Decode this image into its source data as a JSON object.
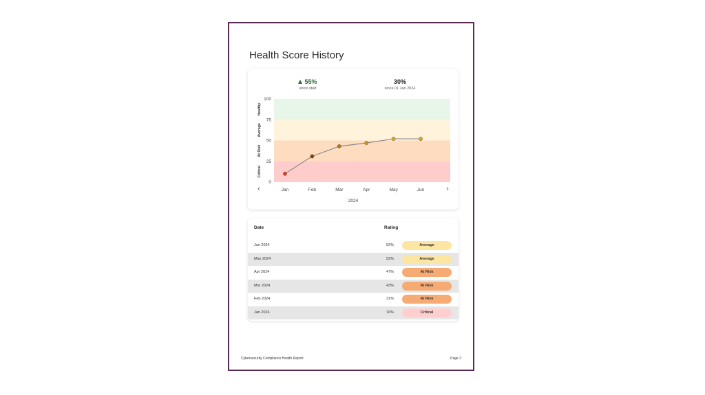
{
  "page": {
    "title": "Health Score History",
    "footer_left": "Cybersecurity Compliance Health Report",
    "footer_right": "Page 2"
  },
  "stats": [
    {
      "value": "55%",
      "caption": "since start",
      "trend": "up"
    },
    {
      "value": "30%",
      "caption": "since 01 Jan 2024",
      "trend": "none"
    }
  ],
  "nav": {
    "prev_icon": "chevron-left-icon",
    "next_icon": "chevron-right-icon",
    "prev_glyph": "‹",
    "next_glyph": "›"
  },
  "chart_data": {
    "type": "line",
    "categories": [
      "Jan",
      "Feb",
      "Mar",
      "Apr",
      "May",
      "Jun"
    ],
    "values": [
      10,
      31,
      43,
      47,
      52,
      52
    ],
    "point_colors": [
      "#e03a2e",
      "#8a3a12",
      "#b5761a",
      "#c89a1a",
      "#d4ad2a",
      "#d4ad2a"
    ],
    "y_ticks": [
      "0",
      "25",
      "50",
      "75",
      "100"
    ],
    "ylim": [
      0,
      100
    ],
    "xlabel": "2024",
    "grid": false,
    "bands": [
      {
        "label": "Critical",
        "from": 0,
        "to": 25,
        "color": "#ffcccc"
      },
      {
        "label": "At Risk",
        "from": 25,
        "to": 50,
        "color": "#fddcc0"
      },
      {
        "label": "Average",
        "from": 50,
        "to": 75,
        "color": "#fff3dc"
      },
      {
        "label": "Healthy",
        "from": 75,
        "to": 100,
        "color": "#e8f6ea"
      }
    ],
    "line_color": "#8a8a8a"
  },
  "table": {
    "headers": {
      "date": "Date",
      "rating": "Rating"
    },
    "rows": [
      {
        "date": "Jun 2024",
        "pct": "52%",
        "rating": "Average",
        "color": "#fde6a2"
      },
      {
        "date": "May 2024",
        "pct": "52%",
        "rating": "Average",
        "color": "#fde6a2"
      },
      {
        "date": "Apr 2024",
        "pct": "47%",
        "rating": "At Risk",
        "color": "#f7ab74"
      },
      {
        "date": "Mar 2024",
        "pct": "43%",
        "rating": "At Risk",
        "color": "#f7ab74"
      },
      {
        "date": "Feb 2024",
        "pct": "31%",
        "rating": "At Risk",
        "color": "#f7ab74"
      },
      {
        "date": "Jan 2024",
        "pct": "10%",
        "rating": "Critical",
        "color": "#ffcfcf"
      }
    ]
  }
}
